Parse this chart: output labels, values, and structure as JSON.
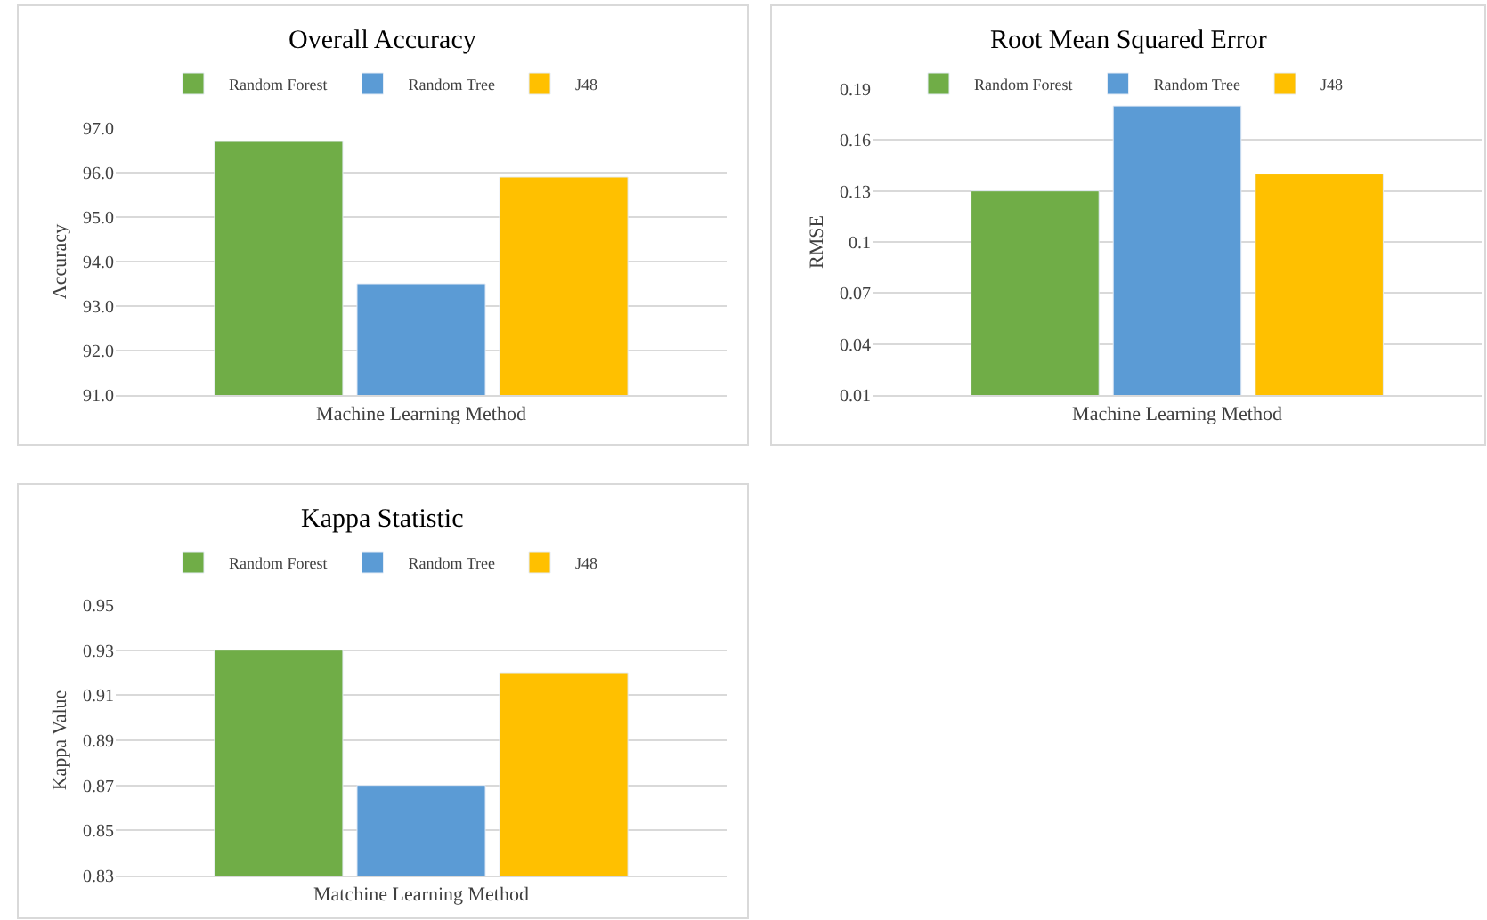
{
  "chart_data": [
    {
      "type": "bar",
      "title": "Overall Accuracy",
      "xlabel": "Machine Learning Method",
      "ylabel": "Accuracy",
      "categories": [
        null
      ],
      "series": [
        {
          "name": "Random Forest",
          "color": "#70ad47",
          "values": [
            96.7
          ]
        },
        {
          "name": "Random Tree",
          "color": "#5b9bd5",
          "values": [
            93.5
          ]
        },
        {
          "name": "J48",
          "color": "#ffc000",
          "values": [
            95.9
          ]
        }
      ],
      "ylim": [
        91,
        97
      ],
      "yticks": [
        {
          "value": 91,
          "label": "91.0"
        },
        {
          "value": 92,
          "label": "92.0"
        },
        {
          "value": 93,
          "label": "93.0"
        },
        {
          "value": 94,
          "label": "94.0"
        },
        {
          "value": 95,
          "label": "95.0"
        },
        {
          "value": 96,
          "label": "96.0"
        },
        {
          "value": 97,
          "label": "97.0"
        }
      ],
      "grid": "y",
      "legend": "top"
    },
    {
      "type": "bar",
      "title": "Root Mean Squared Error",
      "xlabel": "Machine Learning Method",
      "ylabel": "RMSE",
      "categories": [
        null
      ],
      "series": [
        {
          "name": "Random Forest",
          "color": "#70ad47",
          "values": [
            0.13
          ]
        },
        {
          "name": "Random Tree",
          "color": "#5b9bd5",
          "values": [
            0.18
          ]
        },
        {
          "name": "J48",
          "color": "#ffc000",
          "values": [
            0.14
          ]
        }
      ],
      "ylim": [
        0.01,
        0.19
      ],
      "yticks": [
        0.01,
        0.04,
        0.07,
        0.1,
        0.13,
        0.16,
        0.19
      ],
      "grid": "y",
      "legend": "top"
    },
    {
      "type": "bar",
      "title": "Kappa Statistic",
      "xlabel": "Matchine Learning Method",
      "ylabel": "Kappa Value",
      "categories": [
        null
      ],
      "series": [
        {
          "name": "Random Forest",
          "color": "#70ad47",
          "values": [
            0.93
          ]
        },
        {
          "name": "Random Tree",
          "color": "#5b9bd5",
          "values": [
            0.87
          ]
        },
        {
          "name": "J48",
          "color": "#ffc000",
          "values": [
            0.92
          ]
        }
      ],
      "ylim": [
        0.83,
        0.95
      ],
      "yticks": [
        0.83,
        0.85,
        0.87,
        0.89,
        0.91,
        0.93,
        0.95
      ],
      "grid": "y",
      "legend": "top"
    }
  ]
}
